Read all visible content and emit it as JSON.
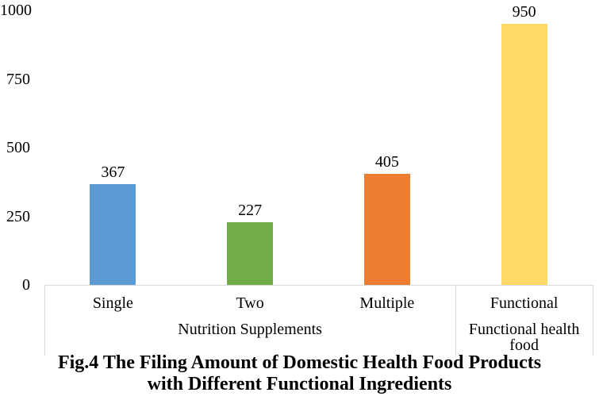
{
  "chart_data": {
    "type": "bar",
    "categories": [
      "Single",
      "Two",
      "Multiple",
      "Functional"
    ],
    "values": [
      367,
      227,
      405,
      950
    ],
    "data_labels": [
      "367",
      "227",
      "405",
      "950"
    ],
    "bar_colors": [
      "#5B9BD5",
      "#70AD47",
      "#ED7D31",
      "#FFD966"
    ],
    "yticks": [
      0,
      250,
      500,
      750,
      1000
    ],
    "ylim": [
      0,
      1000
    ],
    "group_labels": [
      {
        "label": "Nutrition Supplements",
        "span": [
          0,
          3
        ]
      },
      {
        "label": "Functional health food",
        "span": [
          3,
          4
        ]
      }
    ],
    "title": "Fig.4 The Filing Amount of Domestic Health Food Products with Different Functional Ingredients",
    "title_lines": [
      "Fig.4 The Filing Amount of Domestic Health Food Products",
      "with Different Functional Ingredients"
    ],
    "gridlines": false,
    "legend": "none",
    "axis_line_color": "#D9D9D9",
    "text_color": "#000000",
    "background_color": "#FFFFFF"
  }
}
